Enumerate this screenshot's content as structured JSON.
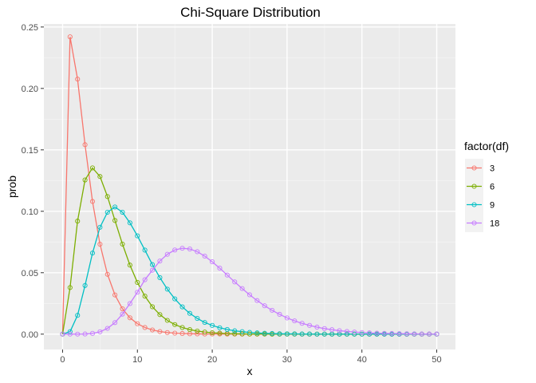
{
  "chart_data": {
    "type": "line",
    "title": "Chi-Square Distribution",
    "xlabel": "x",
    "ylabel": "prob",
    "xlim": [
      -2.5,
      52.5
    ],
    "ylim": [
      -0.0125,
      0.2525
    ],
    "x_ticks": [
      0,
      10,
      20,
      30,
      40,
      50
    ],
    "x_tick_labels": [
      "0",
      "10",
      "20",
      "30",
      "40",
      "50"
    ],
    "y_ticks": [
      0,
      0.05,
      0.1,
      0.15,
      0.2,
      0.25
    ],
    "y_tick_labels": [
      "0.00",
      "0.05",
      "0.10",
      "0.15",
      "0.20",
      "0.25"
    ],
    "grid": true,
    "legend_placement": "right",
    "legend_title": "factor(df)",
    "x": [
      0,
      1,
      2,
      3,
      4,
      5,
      6,
      7,
      8,
      9,
      10,
      11,
      12,
      13,
      14,
      15,
      16,
      17,
      18,
      19,
      20,
      21,
      22,
      23,
      24,
      25,
      26,
      27,
      28,
      29,
      30,
      31,
      32,
      33,
      34,
      35,
      36,
      37,
      38,
      39,
      40,
      41,
      42,
      43,
      44,
      45,
      46,
      47,
      48,
      49,
      50
    ],
    "series": [
      {
        "name": "3",
        "color": "#F8766D",
        "values": [
          0,
          0.242,
          0.2076,
          0.1542,
          0.108,
          0.0732,
          0.0487,
          0.0319,
          0.0206,
          0.0133,
          0.0085,
          0.0054,
          0.0034,
          0.0021,
          0.0013,
          0.0008,
          0.0005,
          0.0003,
          0.0002,
          0.0001,
          0.0001,
          0.0001,
          0,
          0,
          0,
          0,
          0,
          0,
          0,
          0,
          0,
          0,
          0,
          0,
          0,
          0,
          0,
          0,
          0,
          0,
          0,
          0,
          0,
          0,
          0,
          0,
          0,
          0,
          0,
          0,
          0
        ]
      },
      {
        "name": "6",
        "color": "#7CAE00",
        "values": [
          0,
          0.0379,
          0.092,
          0.1255,
          0.1353,
          0.1283,
          0.112,
          0.0925,
          0.0733,
          0.0562,
          0.0421,
          0.0309,
          0.0223,
          0.0159,
          0.0112,
          0.0078,
          0.0054,
          0.0037,
          0.0025,
          0.0017,
          0.0011,
          0.0008,
          0.0005,
          0.0003,
          0.0002,
          0.0001,
          0.0001,
          0.0001,
          0,
          0,
          0,
          0,
          0,
          0,
          0,
          0,
          0,
          0,
          0,
          0,
          0,
          0,
          0,
          0,
          0,
          0,
          0,
          0,
          0,
          0,
          0
        ]
      },
      {
        "name": "9",
        "color": "#00BFC4",
        "values": [
          0,
          0.002,
          0.0153,
          0.0396,
          0.066,
          0.087,
          0.0992,
          0.1035,
          0.0992,
          0.0906,
          0.08,
          0.0684,
          0.0566,
          0.046,
          0.0366,
          0.0287,
          0.0222,
          0.0169,
          0.0128,
          0.0095,
          0.0071,
          0.0052,
          0.0038,
          0.0027,
          0.002,
          0.0014,
          0.001,
          0.0007,
          0.0005,
          0.0003,
          0.0002,
          0.0002,
          0.0001,
          0.0001,
          0,
          0,
          0,
          0,
          0,
          0,
          0,
          0,
          0,
          0,
          0,
          0,
          0,
          0,
          0,
          0,
          0
        ]
      },
      {
        "name": "18",
        "color": "#C77CFF",
        "values": [
          0,
          0,
          0,
          0.0001,
          0.0006,
          0.0019,
          0.0047,
          0.0094,
          0.0163,
          0.0249,
          0.0341,
          0.0443,
          0.052,
          0.0595,
          0.065,
          0.0685,
          0.0699,
          0.0693,
          0.0671,
          0.0635,
          0.0589,
          0.0537,
          0.0481,
          0.0425,
          0.0371,
          0.032,
          0.0273,
          0.0231,
          0.0194,
          0.0161,
          0.0132,
          0.0108,
          0.0088,
          0.0071,
          0.0057,
          0.0045,
          0.0036,
          0.0028,
          0.0022,
          0.0017,
          0.0013,
          0.001,
          0.0008,
          0.0006,
          0.0005,
          0.0004,
          0.0003,
          0.0002,
          0.0001,
          0.0001,
          0.0001
        ]
      }
    ]
  }
}
